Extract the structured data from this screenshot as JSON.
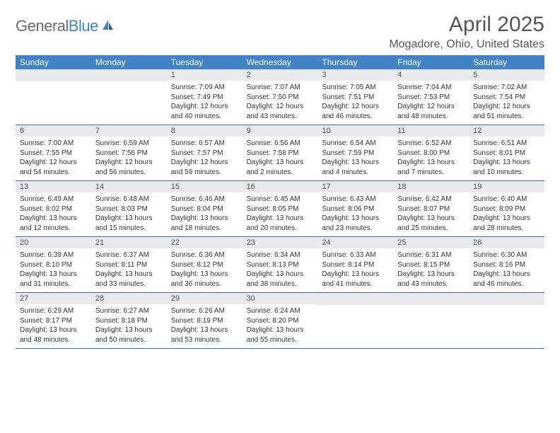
{
  "logo": {
    "general": "General",
    "blue": "Blue"
  },
  "title": "April 2025",
  "location": "Mogadore, Ohio, United States",
  "colors": {
    "header_bg": "#3f84c4",
    "date_bar_bg": "#e8eaed",
    "border": "#3f6ea0",
    "text": "#333333",
    "title_text": "#555555"
  },
  "day_names": [
    "Sunday",
    "Monday",
    "Tuesday",
    "Wednesday",
    "Thursday",
    "Friday",
    "Saturday"
  ],
  "weeks": [
    [
      {
        "date": "",
        "sunrise": "",
        "sunset": "",
        "daylight": ""
      },
      {
        "date": "",
        "sunrise": "",
        "sunset": "",
        "daylight": ""
      },
      {
        "date": "1",
        "sunrise": "Sunrise: 7:09 AM",
        "sunset": "Sunset: 7:49 PM",
        "daylight": "Daylight: 12 hours and 40 minutes."
      },
      {
        "date": "2",
        "sunrise": "Sunrise: 7:07 AM",
        "sunset": "Sunset: 7:50 PM",
        "daylight": "Daylight: 12 hours and 43 minutes."
      },
      {
        "date": "3",
        "sunrise": "Sunrise: 7:05 AM",
        "sunset": "Sunset: 7:51 PM",
        "daylight": "Daylight: 12 hours and 46 minutes."
      },
      {
        "date": "4",
        "sunrise": "Sunrise: 7:04 AM",
        "sunset": "Sunset: 7:53 PM",
        "daylight": "Daylight: 12 hours and 48 minutes."
      },
      {
        "date": "5",
        "sunrise": "Sunrise: 7:02 AM",
        "sunset": "Sunset: 7:54 PM",
        "daylight": "Daylight: 12 hours and 51 minutes."
      }
    ],
    [
      {
        "date": "6",
        "sunrise": "Sunrise: 7:00 AM",
        "sunset": "Sunset: 7:55 PM",
        "daylight": "Daylight: 12 hours and 54 minutes."
      },
      {
        "date": "7",
        "sunrise": "Sunrise: 6:59 AM",
        "sunset": "Sunset: 7:56 PM",
        "daylight": "Daylight: 12 hours and 56 minutes."
      },
      {
        "date": "8",
        "sunrise": "Sunrise: 6:57 AM",
        "sunset": "Sunset: 7:57 PM",
        "daylight": "Daylight: 12 hours and 59 minutes."
      },
      {
        "date": "9",
        "sunrise": "Sunrise: 6:56 AM",
        "sunset": "Sunset: 7:58 PM",
        "daylight": "Daylight: 13 hours and 2 minutes."
      },
      {
        "date": "10",
        "sunrise": "Sunrise: 6:54 AM",
        "sunset": "Sunset: 7:59 PM",
        "daylight": "Daylight: 13 hours and 4 minutes."
      },
      {
        "date": "11",
        "sunrise": "Sunrise: 6:52 AM",
        "sunset": "Sunset: 8:00 PM",
        "daylight": "Daylight: 13 hours and 7 minutes."
      },
      {
        "date": "12",
        "sunrise": "Sunrise: 6:51 AM",
        "sunset": "Sunset: 8:01 PM",
        "daylight": "Daylight: 13 hours and 10 minutes."
      }
    ],
    [
      {
        "date": "13",
        "sunrise": "Sunrise: 6:49 AM",
        "sunset": "Sunset: 8:02 PM",
        "daylight": "Daylight: 13 hours and 12 minutes."
      },
      {
        "date": "14",
        "sunrise": "Sunrise: 6:48 AM",
        "sunset": "Sunset: 8:03 PM",
        "daylight": "Daylight: 13 hours and 15 minutes."
      },
      {
        "date": "15",
        "sunrise": "Sunrise: 6:46 AM",
        "sunset": "Sunset: 8:04 PM",
        "daylight": "Daylight: 13 hours and 18 minutes."
      },
      {
        "date": "16",
        "sunrise": "Sunrise: 6:45 AM",
        "sunset": "Sunset: 8:05 PM",
        "daylight": "Daylight: 13 hours and 20 minutes."
      },
      {
        "date": "17",
        "sunrise": "Sunrise: 6:43 AM",
        "sunset": "Sunset: 8:06 PM",
        "daylight": "Daylight: 13 hours and 23 minutes."
      },
      {
        "date": "18",
        "sunrise": "Sunrise: 6:42 AM",
        "sunset": "Sunset: 8:07 PM",
        "daylight": "Daylight: 13 hours and 25 minutes."
      },
      {
        "date": "19",
        "sunrise": "Sunrise: 6:40 AM",
        "sunset": "Sunset: 8:09 PM",
        "daylight": "Daylight: 13 hours and 28 minutes."
      }
    ],
    [
      {
        "date": "20",
        "sunrise": "Sunrise: 6:39 AM",
        "sunset": "Sunset: 8:10 PM",
        "daylight": "Daylight: 13 hours and 31 minutes."
      },
      {
        "date": "21",
        "sunrise": "Sunrise: 6:37 AM",
        "sunset": "Sunset: 8:11 PM",
        "daylight": "Daylight: 13 hours and 33 minutes."
      },
      {
        "date": "22",
        "sunrise": "Sunrise: 6:36 AM",
        "sunset": "Sunset: 8:12 PM",
        "daylight": "Daylight: 13 hours and 36 minutes."
      },
      {
        "date": "23",
        "sunrise": "Sunrise: 6:34 AM",
        "sunset": "Sunset: 8:13 PM",
        "daylight": "Daylight: 13 hours and 38 minutes."
      },
      {
        "date": "24",
        "sunrise": "Sunrise: 6:33 AM",
        "sunset": "Sunset: 8:14 PM",
        "daylight": "Daylight: 13 hours and 41 minutes."
      },
      {
        "date": "25",
        "sunrise": "Sunrise: 6:31 AM",
        "sunset": "Sunset: 8:15 PM",
        "daylight": "Daylight: 13 hours and 43 minutes."
      },
      {
        "date": "26",
        "sunrise": "Sunrise: 6:30 AM",
        "sunset": "Sunset: 8:16 PM",
        "daylight": "Daylight: 13 hours and 46 minutes."
      }
    ],
    [
      {
        "date": "27",
        "sunrise": "Sunrise: 6:29 AM",
        "sunset": "Sunset: 8:17 PM",
        "daylight": "Daylight: 13 hours and 48 minutes."
      },
      {
        "date": "28",
        "sunrise": "Sunrise: 6:27 AM",
        "sunset": "Sunset: 8:18 PM",
        "daylight": "Daylight: 13 hours and 50 minutes."
      },
      {
        "date": "29",
        "sunrise": "Sunrise: 6:26 AM",
        "sunset": "Sunset: 8:19 PM",
        "daylight": "Daylight: 13 hours and 53 minutes."
      },
      {
        "date": "30",
        "sunrise": "Sunrise: 6:24 AM",
        "sunset": "Sunset: 8:20 PM",
        "daylight": "Daylight: 13 hours and 55 minutes."
      },
      {
        "date": "",
        "sunrise": "",
        "sunset": "",
        "daylight": ""
      },
      {
        "date": "",
        "sunrise": "",
        "sunset": "",
        "daylight": ""
      },
      {
        "date": "",
        "sunrise": "",
        "sunset": "",
        "daylight": ""
      }
    ]
  ]
}
